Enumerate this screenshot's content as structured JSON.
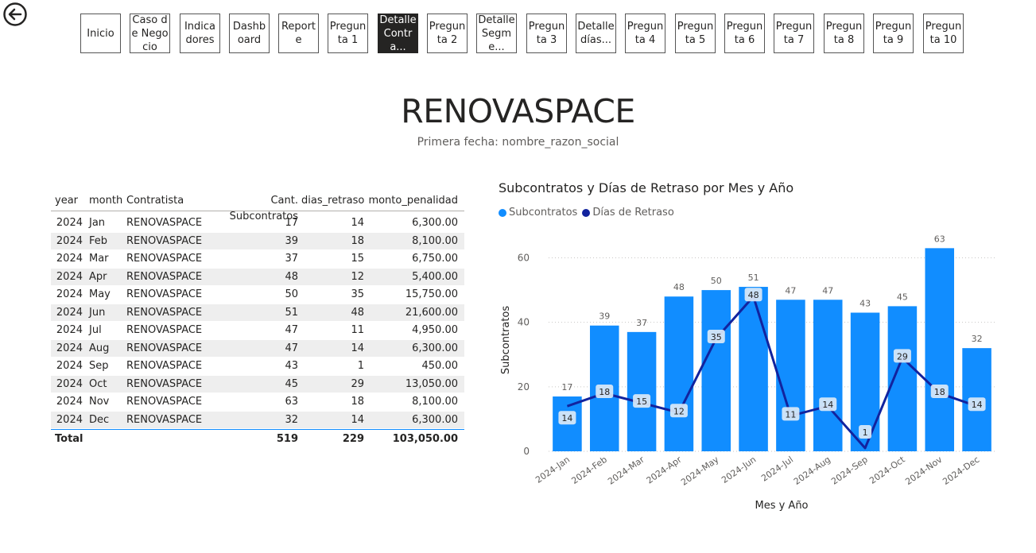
{
  "nav": {
    "buttons": [
      {
        "label": "Inicio",
        "active": false
      },
      {
        "label": "Caso de Negocio",
        "active": false
      },
      {
        "label": "Indicadores",
        "active": false
      },
      {
        "label": "Dashboard",
        "active": false
      },
      {
        "label": "Reporte",
        "active": false
      },
      {
        "label": "Pregunta 1",
        "active": false
      },
      {
        "label": "Detalle Contra...",
        "active": true
      },
      {
        "label": "Pregunta 2",
        "active": false
      },
      {
        "label": "Detalle Segme...",
        "active": false
      },
      {
        "label": "Pregunta 3",
        "active": false
      },
      {
        "label": "Detalle días...",
        "active": false
      },
      {
        "label": "Pregunta 4",
        "active": false
      },
      {
        "label": "Pregunta 5",
        "active": false
      },
      {
        "label": "Pregunta 6",
        "active": false
      },
      {
        "label": "Pregunta 7",
        "active": false
      },
      {
        "label": "Pregunta 8",
        "active": false
      },
      {
        "label": "Pregunta 9",
        "active": false
      },
      {
        "label": "Pregunta 10",
        "active": false
      }
    ]
  },
  "header": {
    "title": "RENOVASPACE",
    "subtitle": "Primera fecha: nombre_razon_social"
  },
  "table": {
    "columns": [
      "year",
      "month",
      "Contratista",
      "Cant. Subcontratos",
      "dias_retraso",
      "monto_penalidad"
    ],
    "rows": [
      [
        "2024",
        "Jan",
        "RENOVASPACE",
        "17",
        "14",
        "6,300.00"
      ],
      [
        "2024",
        "Feb",
        "RENOVASPACE",
        "39",
        "18",
        "8,100.00"
      ],
      [
        "2024",
        "Mar",
        "RENOVASPACE",
        "37",
        "15",
        "6,750.00"
      ],
      [
        "2024",
        "Apr",
        "RENOVASPACE",
        "48",
        "12",
        "5,400.00"
      ],
      [
        "2024",
        "May",
        "RENOVASPACE",
        "50",
        "35",
        "15,750.00"
      ],
      [
        "2024",
        "Jun",
        "RENOVASPACE",
        "51",
        "48",
        "21,600.00"
      ],
      [
        "2024",
        "Jul",
        "RENOVASPACE",
        "47",
        "11",
        "4,950.00"
      ],
      [
        "2024",
        "Aug",
        "RENOVASPACE",
        "47",
        "14",
        "6,300.00"
      ],
      [
        "2024",
        "Sep",
        "RENOVASPACE",
        "43",
        "1",
        "450.00"
      ],
      [
        "2024",
        "Oct",
        "RENOVASPACE",
        "45",
        "29",
        "13,050.00"
      ],
      [
        "2024",
        "Nov",
        "RENOVASPACE",
        "63",
        "18",
        "8,100.00"
      ],
      [
        "2024",
        "Dec",
        "RENOVASPACE",
        "32",
        "14",
        "6,300.00"
      ]
    ],
    "total": {
      "label": "Total",
      "cant": "519",
      "dias": "229",
      "monto": "103,050.00"
    }
  },
  "chart": {
    "title": "Subcontratos y Días de Retraso por Mes y Año",
    "legend": [
      {
        "name": "Subcontratos",
        "color": "#118dff"
      },
      {
        "name": "Días de Retraso",
        "color": "#12239e"
      }
    ]
  },
  "chart_data": {
    "type": "bar",
    "title": "Subcontratos y Días de Retraso por Mes y Año",
    "xlabel": "Mes y Año",
    "ylabel": "Subcontratos",
    "categories": [
      "2024-Jan",
      "2024-Feb",
      "2024-Mar",
      "2024-Apr",
      "2024-May",
      "2024-Jun",
      "2024-Jul",
      "2024-Aug",
      "2024-Sep",
      "2024-Oct",
      "2024-Nov",
      "2024-Dec"
    ],
    "series": [
      {
        "name": "Subcontratos",
        "type": "bar",
        "color": "#118dff",
        "values": [
          17,
          39,
          37,
          48,
          50,
          51,
          47,
          47,
          43,
          45,
          63,
          32
        ]
      },
      {
        "name": "Días de Retraso",
        "type": "line",
        "color": "#12239e",
        "values": [
          14,
          18,
          15,
          12,
          35,
          48,
          11,
          14,
          1,
          29,
          18,
          14
        ]
      }
    ],
    "ylim": [
      0,
      60
    ],
    "yticks": [
      0,
      20,
      40,
      60
    ],
    "grid": true,
    "legend_position": "top-left"
  }
}
